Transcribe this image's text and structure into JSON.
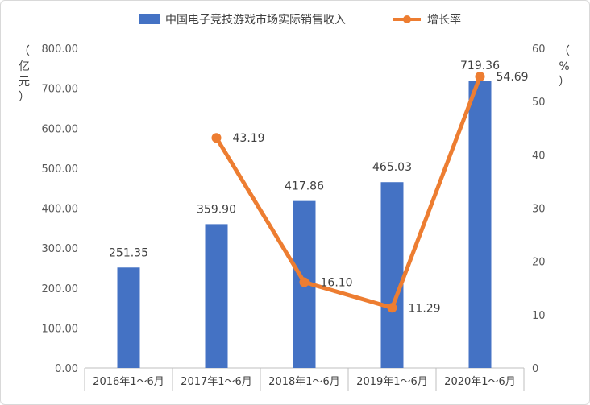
{
  "chart_data": {
    "type": "bar",
    "categories": [
      "2016年1～6月",
      "2017年1～6月",
      "2018年1～6月",
      "2019年1～6月",
      "2020年1～6月"
    ],
    "series": [
      {
        "name": "中国电子竞技游戏市场实际销售收入",
        "type": "bar",
        "axis": "left",
        "color": "#4472c4",
        "values": [
          251.35,
          359.9,
          417.86,
          465.03,
          719.36
        ],
        "labels": [
          "251.35",
          "359.90",
          "417.86",
          "465.03",
          "719.36"
        ]
      },
      {
        "name": "增长率",
        "type": "line",
        "axis": "right",
        "color": "#ed7d31",
        "values": [
          null,
          43.19,
          16.1,
          11.29,
          54.69
        ],
        "labels": [
          "",
          "43.19",
          "16.10",
          "11.29",
          "54.69"
        ]
      }
    ],
    "y_left": {
      "unit_label": "（亿元）",
      "unit_chars": [
        "（",
        "亿",
        "元",
        "）"
      ],
      "range": [
        0,
        800
      ],
      "ticks": [
        "0.00",
        "100.00",
        "200.00",
        "300.00",
        "400.00",
        "500.00",
        "600.00",
        "700.00",
        "800.00"
      ]
    },
    "y_right": {
      "unit_label": "（%）",
      "unit_chars": [
        "（",
        "%",
        "）"
      ],
      "range": [
        0,
        60
      ],
      "ticks": [
        "0",
        "10",
        "20",
        "30",
        "40",
        "50",
        "60"
      ]
    },
    "legend": {
      "position": "top",
      "items": [
        {
          "label": "中国电子竞技游戏市场实际销售收入",
          "marker": "bar",
          "color": "#4472c4"
        },
        {
          "label": "增长率",
          "marker": "line",
          "color": "#ed7d31"
        }
      ]
    },
    "grid": false
  }
}
